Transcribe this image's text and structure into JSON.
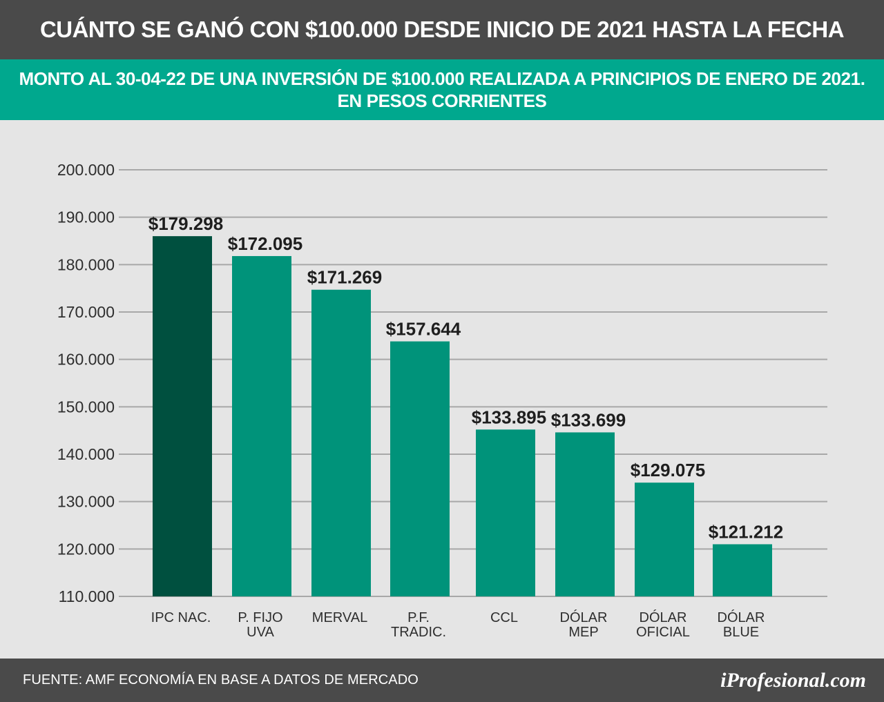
{
  "header": {
    "title": "CUÁNTO SE GANÓ CON $100.000 DESDE INICIO DE 2021 HASTA LA FECHA"
  },
  "subheader": {
    "line1": "MONTO AL 30-04-22 DE UNA INVERSIÓN DE $100.000 REALIZADA A PRINCIPIOS DE ENERO DE 2021.",
    "line2": "EN PESOS CORRIENTES"
  },
  "footer": {
    "source": "FUENTE: AMF ECONOMÍA EN BASE A DATOS DE MERCADO",
    "logo": "iProfesional.com"
  },
  "colors": {
    "header_bg": "#4a4a4a",
    "subheader_bg": "#00a88e",
    "plot_bg": "#e5e5e5",
    "bar_highlight": "#00503f",
    "bar_default": "#00937a",
    "grid": "#a8a8a8"
  },
  "chart_data": {
    "type": "bar",
    "categories": [
      [
        "IPC NAC."
      ],
      [
        "P. FIJO",
        "UVA"
      ],
      [
        "MERVAL"
      ],
      [
        "P.F.",
        "TRADIC."
      ],
      [
        "CCL"
      ],
      [
        "DÓLAR",
        "MEP"
      ],
      [
        "DÓLAR",
        "OFICIAL"
      ],
      [
        "DÓLAR",
        "BLUE"
      ]
    ],
    "bar_tops": [
      186000,
      181800,
      174700,
      163800,
      145200,
      144600,
      134000,
      121000
    ],
    "labels": [
      "$179.298",
      "$172.095",
      "$171.269",
      "$157.644",
      "$133.895",
      "$133.699",
      "$129.075",
      "$121.212"
    ],
    "values": [
      179298,
      172095,
      171269,
      157644,
      133895,
      133699,
      129075,
      121212
    ],
    "highlight_index": 0,
    "ylim": [
      110000,
      200000
    ],
    "yticks": [
      110000,
      120000,
      130000,
      140000,
      150000,
      160000,
      170000,
      180000,
      190000,
      200000
    ],
    "ytick_labels": [
      "110.000",
      "120.000",
      "130.000",
      "140.000",
      "150.000",
      "160.000",
      "170.000",
      "180.000",
      "190.000",
      "200.000"
    ],
    "grid": true,
    "title": "",
    "xlabel": "",
    "ylabel": ""
  }
}
